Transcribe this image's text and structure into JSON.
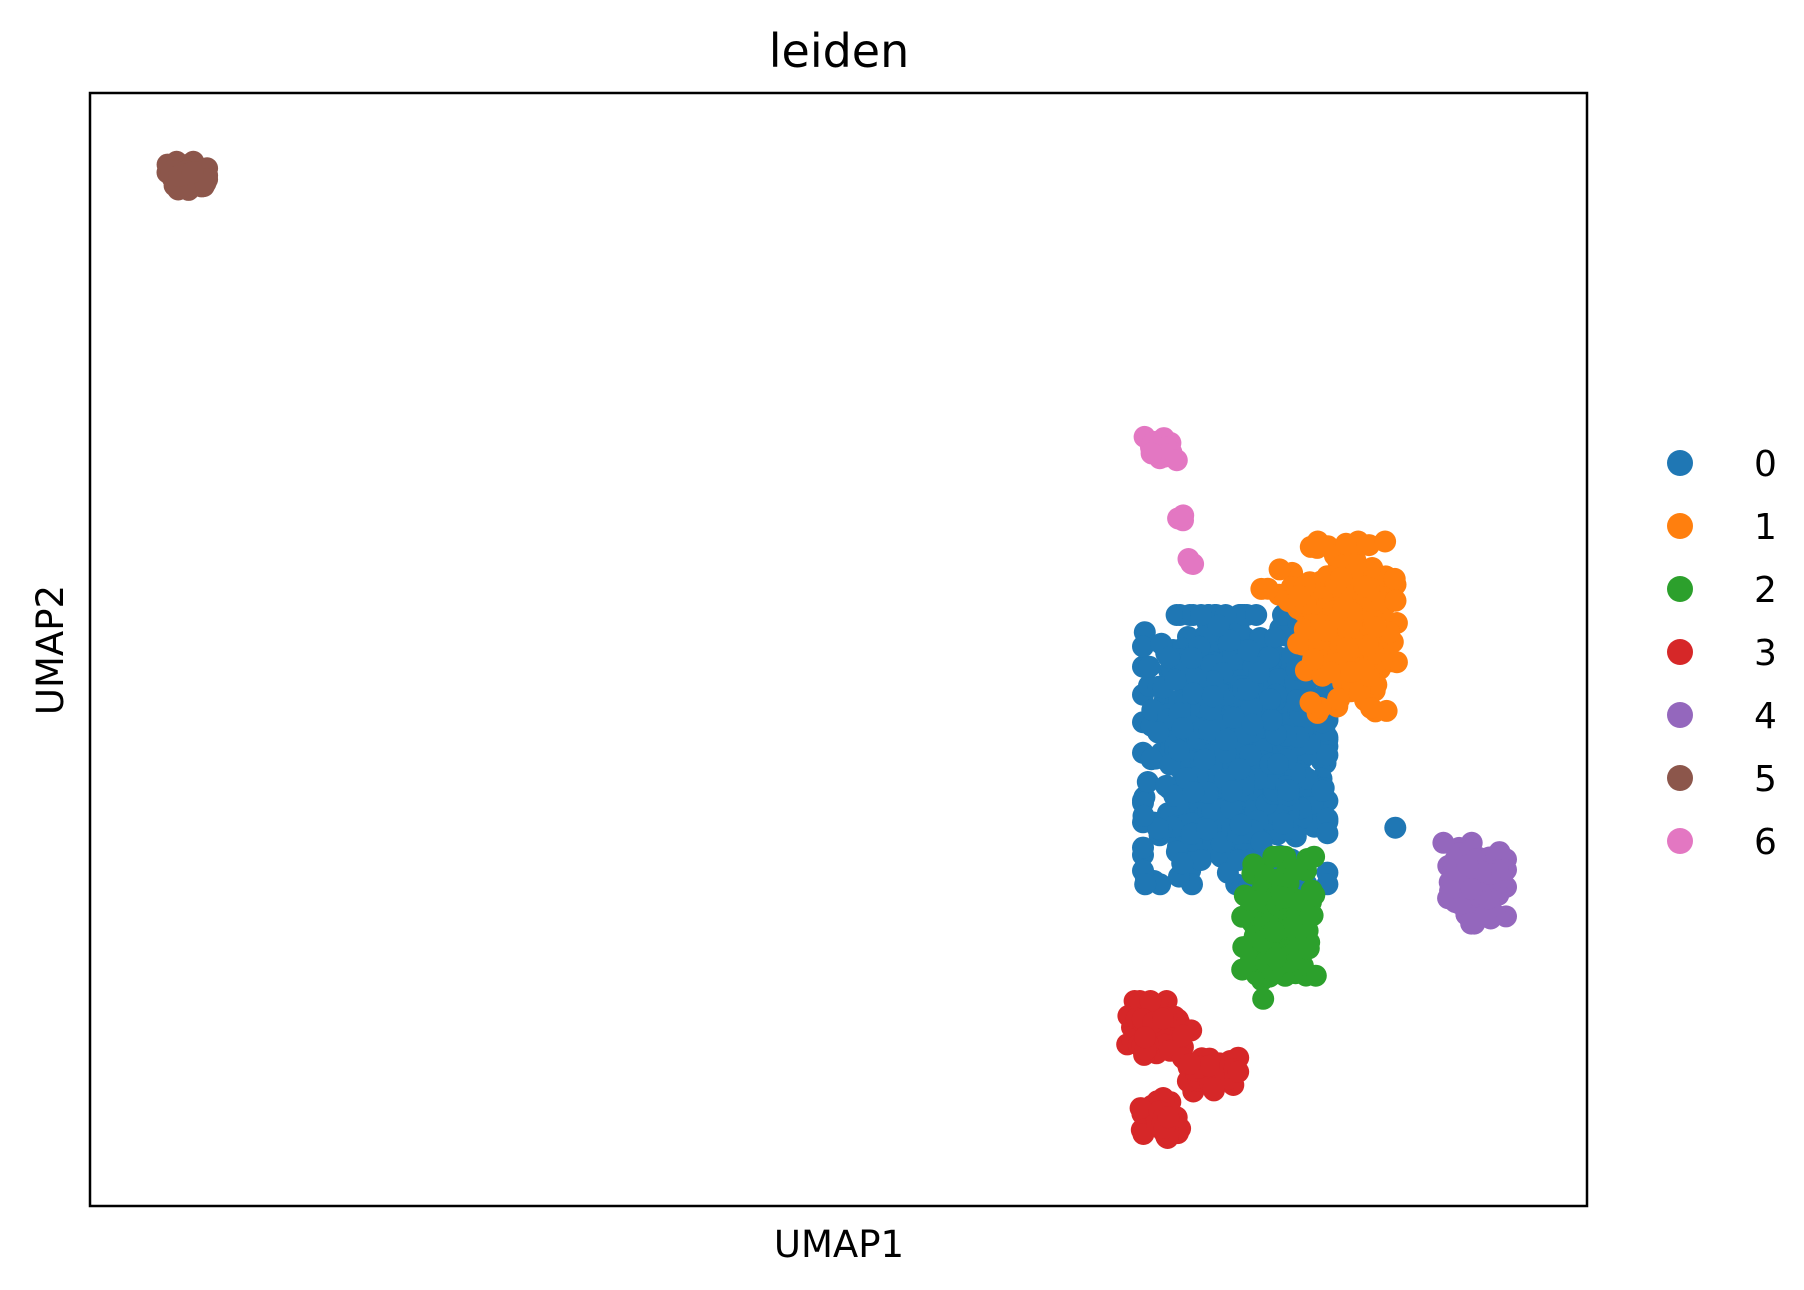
{
  "chart_data": {
    "type": "scatter",
    "title": "leiden",
    "xlabel": "UMAP1",
    "ylabel": "UMAP2",
    "xlim": [
      0,
      100
    ],
    "ylim": [
      0,
      100
    ],
    "ticks_shown": false,
    "grid": false,
    "legend": {
      "placement": "right-outside",
      "entries": [
        "0",
        "1",
        "2",
        "3",
        "4",
        "5",
        "6"
      ]
    },
    "series": [
      {
        "name": "0",
        "color": "#1f77b4",
        "clusters": [
          {
            "center": [
              76.5,
              41.0
            ],
            "spread": [
              5.6,
              11.0
            ],
            "count": 1000
          },
          {
            "center": [
              87.5,
              34.0
            ],
            "spread": [
              0.3,
              0.3
            ],
            "count": 1
          }
        ]
      },
      {
        "name": "1",
        "color": "#ff7f0e",
        "clusters": [
          {
            "center": [
              84.0,
              52.0
            ],
            "spread": [
              3.0,
              7.0
            ],
            "count": 240
          },
          {
            "center": [
              81.0,
              55.0
            ],
            "spread": [
              2.5,
              2.0
            ],
            "count": 20
          }
        ]
      },
      {
        "name": "2",
        "color": "#2ca02c",
        "clusters": [
          {
            "center": [
              79.5,
              25.0
            ],
            "spread": [
              2.3,
              5.8
            ],
            "count": 220
          }
        ]
      },
      {
        "name": "3",
        "color": "#d62728",
        "clusters": [
          {
            "center": [
              71.5,
              16.0
            ],
            "spread": [
              2.2,
              2.2
            ],
            "count": 80
          },
          {
            "center": [
              74.5,
              12.0
            ],
            "spread": [
              2.0,
              1.6
            ],
            "count": 45
          },
          {
            "center": [
              71.5,
              7.5
            ],
            "spread": [
              1.2,
              2.0
            ],
            "count": 60
          }
        ]
      },
      {
        "name": "4",
        "color": "#9467bd",
        "clusters": [
          {
            "center": [
              92.5,
              29.0
            ],
            "spread": [
              1.9,
              3.3
            ],
            "count": 110
          }
        ]
      },
      {
        "name": "5",
        "color": "#8c564b",
        "clusters": [
          {
            "center": [
              6.5,
              92.5
            ],
            "spread": [
              1.2,
              1.2
            ],
            "count": 80
          }
        ]
      },
      {
        "name": "6",
        "color": "#e377c2",
        "clusters": [
          {
            "center": [
              71.5,
              68.0
            ],
            "spread": [
              1.0,
              1.0
            ],
            "count": 35
          },
          {
            "center": [
              73.0,
              62.0
            ],
            "spread": [
              0.7,
              0.4
            ],
            "count": 3
          },
          {
            "center": [
              73.5,
              58.0
            ],
            "spread": [
              0.6,
              0.6
            ],
            "count": 3
          }
        ]
      }
    ]
  }
}
